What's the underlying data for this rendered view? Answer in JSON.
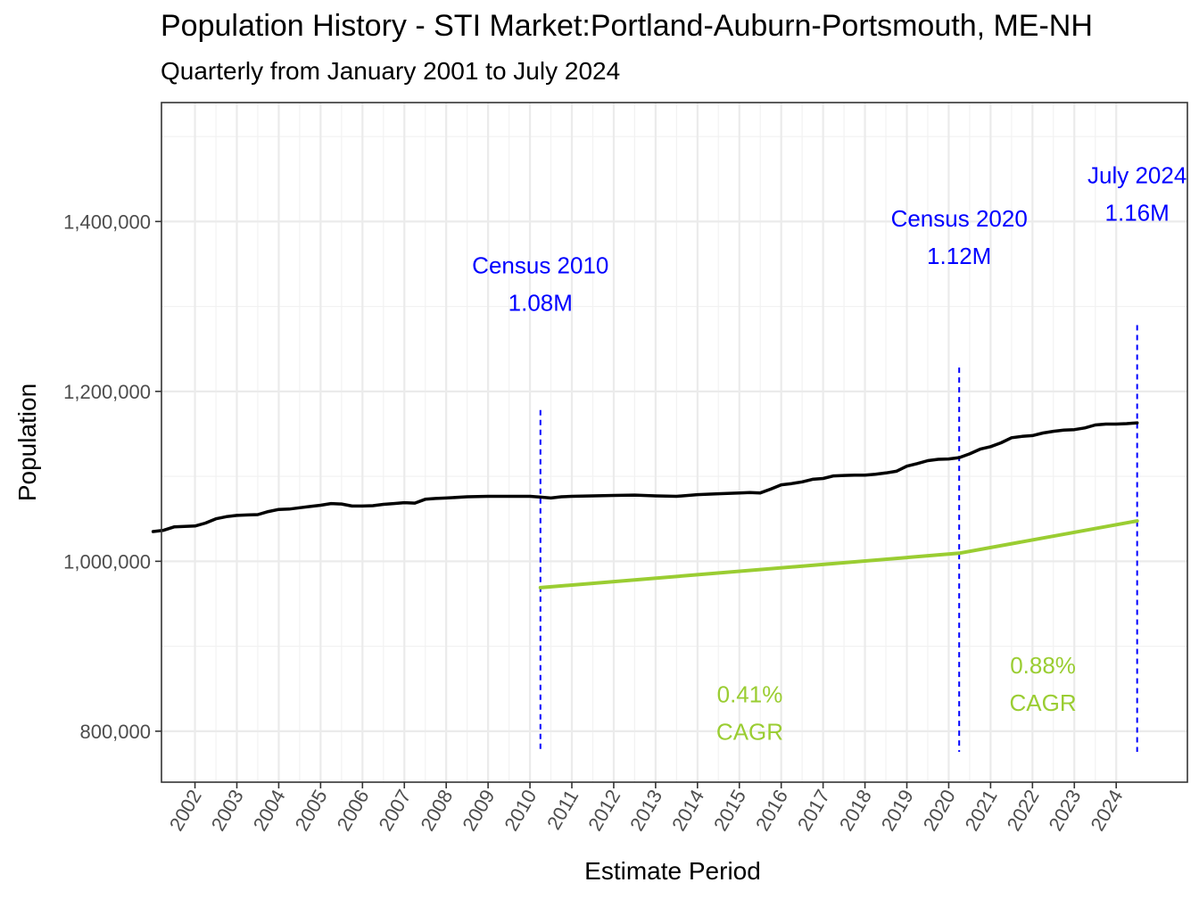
{
  "chart_data": {
    "type": "line",
    "title": "Population History - STI Market:Portland-Auburn-Portsmouth, ME-NH",
    "subtitle": "Quarterly from January 2001 to July 2024",
    "xlabel": "Estimate Period",
    "ylabel": "Population",
    "xlim": [
      2001.2,
      2025.7
    ],
    "ylim": [
      740000,
      1540000
    ],
    "x_ticks": [
      2002,
      2003,
      2004,
      2005,
      2006,
      2007,
      2008,
      2009,
      2010,
      2011,
      2012,
      2013,
      2014,
      2015,
      2016,
      2017,
      2018,
      2019,
      2020,
      2021,
      2022,
      2023,
      2024
    ],
    "x_tick_labels": [
      "2002",
      "2003",
      "2004",
      "2005",
      "2006",
      "2007",
      "2008",
      "2009",
      "2010",
      "2011",
      "2012",
      "2013",
      "2014",
      "2015",
      "2016",
      "2017",
      "2018",
      "2019",
      "2020",
      "2021",
      "2022",
      "2023",
      "2024"
    ],
    "y_ticks": [
      800000,
      1000000,
      1200000,
      1400000
    ],
    "y_tick_labels": [
      "800,000",
      "1,000,000",
      "1,200,000",
      "1,400,000"
    ],
    "y_minor_ticks": [
      900000,
      1100000,
      1300000,
      1500000
    ],
    "grid": true,
    "legend": "none",
    "series": [
      {
        "color": "#000000",
        "x": [
          2001.0,
          2001.25,
          2001.5,
          2001.75,
          2002.0,
          2002.25,
          2002.5,
          2002.75,
          2003.0,
          2003.25,
          2003.5,
          2003.75,
          2004.0,
          2004.25,
          2004.5,
          2004.75,
          2005.0,
          2005.25,
          2005.5,
          2005.75,
          2006.0,
          2006.25,
          2006.5,
          2006.75,
          2007.0,
          2007.25,
          2007.5,
          2007.75,
          2008.0,
          2008.5,
          2009.0,
          2009.5,
          2010.0,
          2010.25,
          2010.5,
          2010.75,
          2011.0,
          2011.5,
          2012.0,
          2012.5,
          2013.0,
          2013.5,
          2014.0,
          2014.5,
          2015.0,
          2015.25,
          2015.5,
          2015.75,
          2016.0,
          2016.25,
          2016.5,
          2016.75,
          2017.0,
          2017.25,
          2017.5,
          2017.75,
          2018.0,
          2018.25,
          2018.5,
          2018.75,
          2019.0,
          2019.25,
          2019.5,
          2019.75,
          2020.0,
          2020.25,
          2020.5,
          2020.75,
          2021.0,
          2021.25,
          2021.5,
          2021.75,
          2022.0,
          2022.25,
          2022.5,
          2022.75,
          2023.0,
          2023.25,
          2023.5,
          2023.75,
          2024.0,
          2024.25,
          2024.5
        ],
        "y": [
          1035000,
          1036500,
          1040500,
          1041000,
          1041500,
          1045000,
          1050000,
          1052500,
          1054000,
          1054500,
          1055000,
          1058500,
          1061000,
          1061500,
          1063000,
          1064500,
          1066000,
          1068000,
          1067500,
          1065000,
          1065000,
          1065500,
          1067000,
          1068000,
          1069000,
          1068500,
          1073000,
          1074000,
          1074500,
          1076000,
          1076500,
          1076500,
          1076500,
          1075500,
          1074500,
          1076000,
          1076500,
          1077000,
          1077500,
          1078000,
          1077000,
          1076500,
          1078500,
          1079500,
          1080500,
          1081000,
          1080500,
          1085000,
          1090000,
          1091500,
          1093500,
          1096500,
          1097500,
          1100500,
          1101000,
          1101500,
          1101500,
          1102500,
          1104000,
          1106000,
          1112000,
          1115000,
          1118500,
          1120000,
          1120500,
          1122000,
          1126500,
          1132000,
          1135000,
          1139500,
          1145500,
          1147000,
          1148000,
          1151000,
          1153000,
          1154500,
          1155000,
          1157000,
          1160500,
          1161500,
          1161500,
          1162000,
          1163000
        ]
      },
      {
        "color": "#9acd32",
        "x": [
          2010.25,
          2020.25,
          2024.5
        ],
        "y": [
          969000,
          1009500,
          1047500
        ]
      }
    ],
    "vlines": [
      {
        "x": 2010.25,
        "y_top": 1178000,
        "color": "#0000ff"
      },
      {
        "x": 2020.25,
        "y_top": 1228000,
        "color": "#0000ff"
      },
      {
        "x": 2024.5,
        "y_top": 1278000,
        "color": "#0000ff"
      }
    ],
    "annotations": [
      {
        "line1": "Census 2010",
        "line2": "1.08M",
        "x": 2010.25,
        "y1": 1339000,
        "y2": 1295000,
        "color": "#0000ff"
      },
      {
        "line1": "Census 2020",
        "line2": "1.12M",
        "x": 2020.25,
        "y1": 1394000,
        "y2": 1350000,
        "color": "#0000ff"
      },
      {
        "line1": "July 2024",
        "line2": "1.16M",
        "x": 2024.5,
        "y1": 1445000,
        "y2": 1401000,
        "color": "#0000ff"
      },
      {
        "line1": "0.41%",
        "line2": "CAGR",
        "x": 2015.25,
        "y1": 834000,
        "y2": 790000,
        "color": "#9acd32"
      },
      {
        "line1": "0.88%",
        "line2": "CAGR",
        "x": 2022.25,
        "y1": 868000,
        "y2": 824000,
        "color": "#9acd32"
      }
    ]
  }
}
